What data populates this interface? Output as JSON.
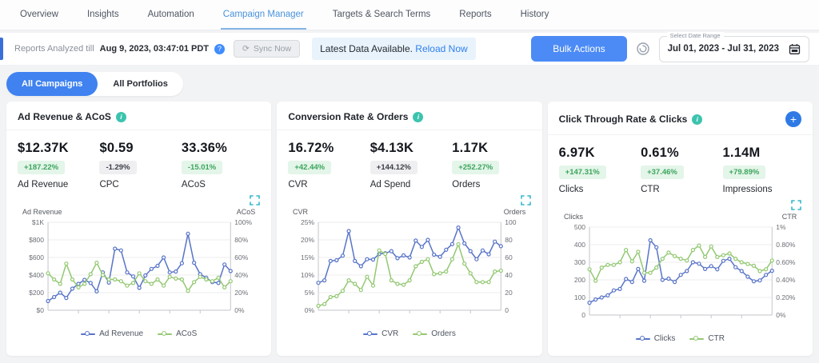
{
  "nav": {
    "tabs": [
      {
        "label": "Overview"
      },
      {
        "label": "Insights"
      },
      {
        "label": "Automation"
      },
      {
        "label": "Campaign Manager"
      },
      {
        "label": "Targets & Search Terms"
      },
      {
        "label": "Reports"
      },
      {
        "label": "History"
      }
    ]
  },
  "header": {
    "reports_analyzed_prefix": "Reports Analyzed till",
    "reports_analyzed_date": "Aug 9, 2023, 03:47:01 PDT",
    "sync_button": "Sync Now",
    "latest_data_text": "Latest Data Available.",
    "reload_link": "Reload Now",
    "bulk_actions_button": "Bulk Actions",
    "date_range_label": "Select Date Range",
    "date_range_value": "Jul 01, 2023 - Jul 31, 2023"
  },
  "icons": {
    "question_glyph": "?",
    "info_glyph": "i",
    "sync_glyph": "⟳",
    "plus_glyph": "+"
  },
  "filters": {
    "campaigns_pill": "All Campaigns",
    "portfolios_pill": "All Portfolios"
  },
  "colors": {
    "accent_blue": "#3f82f0",
    "link_blue": "#2f80ed",
    "positive_green": "#3ba55c",
    "series_blue": "#5874c8",
    "series_green": "#93c872",
    "teal": "#3cc3ae"
  },
  "cards": [
    {
      "title": "Ad Revenue & ACoS",
      "metrics": [
        {
          "value": "$12.37K",
          "delta": "+187.22%",
          "delta_type": "positive",
          "label": "Ad Revenue"
        },
        {
          "value": "$0.59",
          "delta": "-1.29%",
          "delta_type": "neutral",
          "label": "CPC"
        },
        {
          "value": "33.36%",
          "delta": "-15.01%",
          "delta_type": "positive",
          "label": "ACoS"
        }
      ]
    },
    {
      "title": "Conversion Rate & Orders",
      "metrics": [
        {
          "value": "16.72%",
          "delta": "+42.44%",
          "delta_type": "positive",
          "label": "CVR"
        },
        {
          "value": "$4.13K",
          "delta": "+144.12%",
          "delta_type": "neutral",
          "label": "Ad Spend"
        },
        {
          "value": "1.17K",
          "delta": "+252.27%",
          "delta_type": "positive",
          "label": "Orders"
        }
      ]
    },
    {
      "title": "Click Through Rate & Clicks",
      "metrics": [
        {
          "value": "6.97K",
          "delta": "+147.31%",
          "delta_type": "positive",
          "label": "Clicks"
        },
        {
          "value": "0.61%",
          "delta": "+37.46%",
          "delta_type": "positive",
          "label": "CTR"
        },
        {
          "value": "1.14M",
          "delta": "+79.89%",
          "delta_type": "positive",
          "label": "Impressions"
        }
      ]
    }
  ],
  "chart_data": [
    {
      "type": "line",
      "left_axis": {
        "title": "Ad Revenue",
        "ticks": [
          "$1K",
          "$800",
          "$600",
          "$400",
          "$200",
          "$0"
        ],
        "max": 1000
      },
      "right_axis": {
        "title": "ACoS",
        "ticks": [
          "100%",
          "80%",
          "60%",
          "40%",
          "20%",
          "0%"
        ],
        "max": 100
      },
      "series": [
        {
          "name": "Ad Revenue",
          "axis": "left",
          "color": "#5874c8",
          "values": [
            105,
            150,
            200,
            140,
            245,
            300,
            345,
            310,
            215,
            430,
            315,
            700,
            680,
            430,
            385,
            255,
            395,
            470,
            505,
            600,
            430,
            440,
            535,
            870,
            540,
            410,
            370,
            320,
            310,
            520,
            445
          ]
        },
        {
          "name": "ACoS",
          "axis": "right",
          "color": "#93c872",
          "values": [
            42,
            35,
            30,
            53,
            35,
            26,
            30,
            41,
            54,
            40,
            35,
            35,
            33,
            28,
            31,
            42,
            33,
            30,
            35,
            28,
            38,
            36,
            35,
            22,
            32,
            38,
            35,
            33,
            37,
            26,
            33
          ]
        }
      ]
    },
    {
      "type": "line",
      "left_axis": {
        "title": "CVR",
        "ticks": [
          "25%",
          "20%",
          "15%",
          "10%",
          "5%",
          "0%"
        ],
        "max": 25
      },
      "right_axis": {
        "title": "Orders",
        "ticks": [
          "100",
          "80",
          "60",
          "40",
          "20",
          "0"
        ],
        "max": 100
      },
      "series": [
        {
          "name": "CVR",
          "axis": "left",
          "color": "#5874c8",
          "values": [
            7.8,
            8.5,
            14,
            14.2,
            15.5,
            22.5,
            14,
            12.5,
            14.5,
            14.4,
            16,
            16.2,
            16.8,
            14.8,
            15.6,
            15,
            19.8,
            18,
            20,
            15.8,
            15.2,
            17.2,
            18.8,
            23.5,
            19,
            16.8,
            14.5,
            17,
            15.9,
            19.5,
            18.2
          ]
        },
        {
          "name": "Orders",
          "axis": "right",
          "color": "#93c872",
          "values": [
            5,
            7,
            15,
            16,
            22,
            34,
            30,
            23,
            38,
            28,
            68,
            64,
            34,
            30,
            29,
            34,
            50,
            55,
            58,
            41,
            42,
            44,
            58,
            75,
            53,
            42,
            32,
            32,
            32,
            44,
            45
          ]
        }
      ]
    },
    {
      "type": "line",
      "left_axis": {
        "title": "Clicks",
        "ticks": [
          "500",
          "400",
          "300",
          "200",
          "100",
          "0"
        ],
        "max": 500
      },
      "right_axis": {
        "title": "CTR",
        "ticks": [
          "1%",
          "0.80%",
          "0.60%",
          "0.40%",
          "0.20%",
          "0%"
        ],
        "max": 1
      },
      "series": [
        {
          "name": "Clicks",
          "axis": "left",
          "color": "#5874c8",
          "values": [
            70,
            88,
            100,
            112,
            140,
            148,
            205,
            188,
            262,
            195,
            425,
            385,
            200,
            207,
            188,
            228,
            250,
            300,
            292,
            262,
            278,
            260,
            308,
            320,
            272,
            250,
            218,
            192,
            197,
            228,
            252
          ]
        },
        {
          "name": "CTR",
          "axis": "right",
          "color": "#93c872",
          "values": [
            0.52,
            0.39,
            0.54,
            0.57,
            0.57,
            0.6,
            0.74,
            0.61,
            0.72,
            0.48,
            0.48,
            0.54,
            0.64,
            0.71,
            0.67,
            0.64,
            0.62,
            0.74,
            0.79,
            0.66,
            0.78,
            0.66,
            0.68,
            0.7,
            0.64,
            0.6,
            0.58,
            0.56,
            0.5,
            0.52,
            0.62
          ]
        }
      ]
    }
  ]
}
